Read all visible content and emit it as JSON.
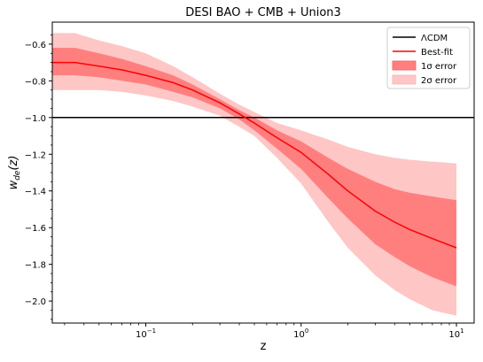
{
  "chart_data": {
    "type": "area",
    "title": "DESI BAO + CMB + Union3",
    "xlabel": "z",
    "ylabel": "w",
    "ylabel_sub": "de",
    "ylabel_arg": "(z)",
    "xscale": "log",
    "xlim": [
      0.025,
      13
    ],
    "ylim": [
      -2.12,
      -0.48
    ],
    "x_ticks": [
      {
        "value": 0.1,
        "base": "10",
        "exp": "−1"
      },
      {
        "value": 1,
        "base": "10",
        "exp": "0"
      },
      {
        "value": 10,
        "base": "10",
        "exp": "1"
      }
    ],
    "y_ticks": [
      {
        "value": -0.6,
        "label": "−0.6"
      },
      {
        "value": -0.8,
        "label": "−0.8"
      },
      {
        "value": -1.0,
        "label": "−1.0"
      },
      {
        "value": -1.2,
        "label": "−1.2"
      },
      {
        "value": -1.4,
        "label": "−1.4"
      },
      {
        "value": -1.6,
        "label": "−1.6"
      },
      {
        "value": -1.8,
        "label": "−1.8"
      },
      {
        "value": -2.0,
        "label": "−2.0"
      }
    ],
    "grid": false,
    "legend_position": "top-right",
    "legend": [
      {
        "label": "ΛCDM",
        "kind": "line",
        "color": "#000000"
      },
      {
        "label": "Best-fit",
        "kind": "line",
        "color": "#ff0000"
      },
      {
        "label": "1σ error",
        "kind": "patch",
        "color": "#ff7f7f"
      },
      {
        "label": "2σ error",
        "kind": "patch",
        "color": "#ffc6c6"
      }
    ],
    "lcdm": {
      "y": -1.0,
      "color": "#000000"
    },
    "z": [
      0.025,
      0.035,
      0.05,
      0.07,
      0.1,
      0.15,
      0.2,
      0.3,
      0.4,
      0.5,
      0.7,
      1.0,
      1.5,
      2.0,
      3.0,
      4.0,
      5.0,
      7.0,
      10.0
    ],
    "series": [
      {
        "name": "Best-fit",
        "color": "#ff0000",
        "values": [
          -0.7,
          -0.7,
          -0.72,
          -0.74,
          -0.77,
          -0.81,
          -0.85,
          -0.92,
          -0.98,
          -1.03,
          -1.11,
          -1.19,
          -1.31,
          -1.4,
          -1.51,
          -1.57,
          -1.61,
          -1.66,
          -1.71
        ]
      },
      {
        "name": "1σ error",
        "color": "#ff7f7f",
        "upper": [
          -0.62,
          -0.62,
          -0.65,
          -0.68,
          -0.72,
          -0.77,
          -0.82,
          -0.9,
          -0.96,
          -1.0,
          -1.07,
          -1.13,
          -1.22,
          -1.28,
          -1.35,
          -1.39,
          -1.41,
          -1.43,
          -1.45
        ],
        "lower": [
          -0.77,
          -0.77,
          -0.78,
          -0.8,
          -0.82,
          -0.86,
          -0.89,
          -0.95,
          -1.01,
          -1.07,
          -1.17,
          -1.28,
          -1.44,
          -1.55,
          -1.69,
          -1.76,
          -1.81,
          -1.87,
          -1.92
        ]
      },
      {
        "name": "2σ error",
        "color": "#ffc6c6",
        "upper": [
          -0.54,
          -0.54,
          -0.58,
          -0.61,
          -0.65,
          -0.72,
          -0.78,
          -0.87,
          -0.93,
          -0.97,
          -1.03,
          -1.07,
          -1.12,
          -1.16,
          -1.2,
          -1.22,
          -1.23,
          -1.24,
          -1.25
        ],
        "lower": [
          -0.85,
          -0.85,
          -0.85,
          -0.86,
          -0.88,
          -0.91,
          -0.94,
          -0.99,
          -1.05,
          -1.1,
          -1.22,
          -1.36,
          -1.57,
          -1.71,
          -1.86,
          -1.94,
          -1.99,
          -2.05,
          -2.08
        ]
      }
    ]
  }
}
